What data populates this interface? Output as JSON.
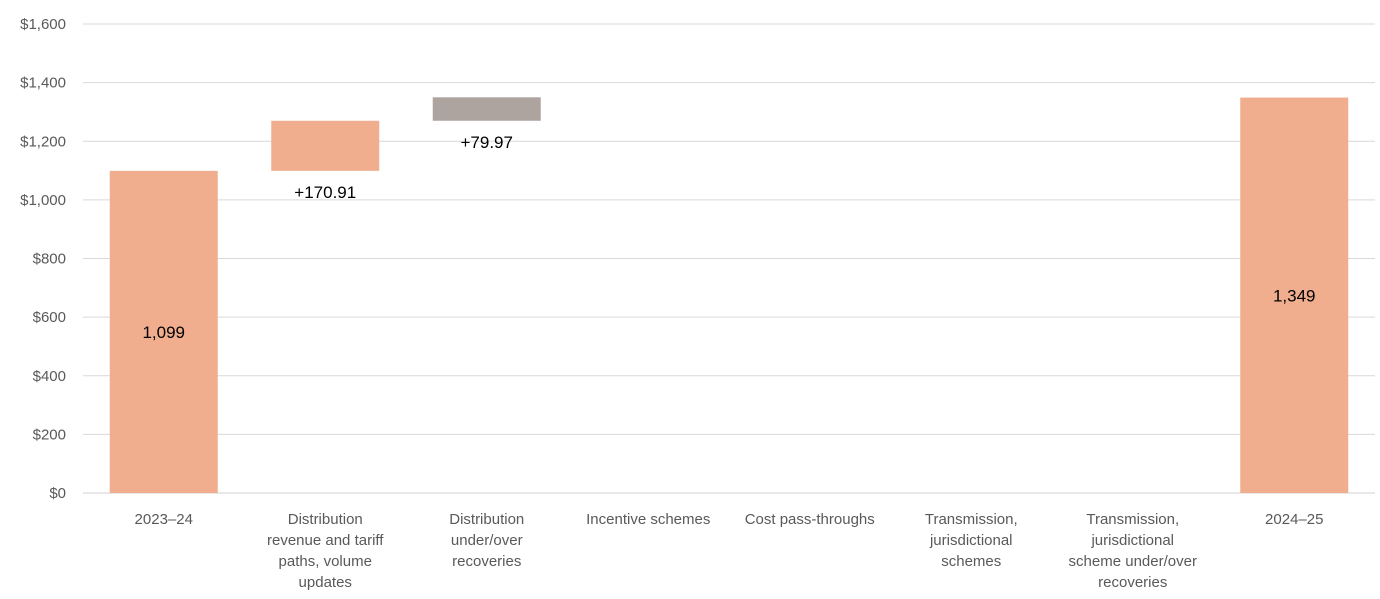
{
  "chart_data": {
    "type": "bar",
    "subtype": "waterfall",
    "title": "",
    "xlabel": "",
    "ylabel": "",
    "ylim": [
      0,
      1600
    ],
    "yticks": [
      "$0",
      "$200",
      "$400",
      "$600",
      "$800",
      "$1,000",
      "$1,200",
      "$1,400",
      "$1,600"
    ],
    "grid": true,
    "legend": "none",
    "categories": [
      [
        "2023–24"
      ],
      [
        "Distribution",
        "revenue and tariff",
        "paths, volume",
        "updates"
      ],
      [
        "Distribution",
        "under/over",
        "recoveries"
      ],
      [
        "Incentive schemes"
      ],
      [
        "Cost pass-throughs"
      ],
      [
        "Transmission,",
        "jurisdictional",
        "schemes"
      ],
      [
        "Transmission,",
        "jurisdictional",
        "scheme under/over",
        "recoveries"
      ],
      [
        "2024–25"
      ]
    ],
    "bars": [
      {
        "kind": "total",
        "base": 0,
        "value": 1099,
        "label": "1,099",
        "color": "#f0ae8f"
      },
      {
        "kind": "delta",
        "base": 1099,
        "value": 170.91,
        "label": "+170.91",
        "color": "#f0ae8f"
      },
      {
        "kind": "delta",
        "base": 1269.91,
        "value": 79.97,
        "label": "+79.97",
        "color": "#aea49f"
      },
      {
        "kind": "delta",
        "base": 1349,
        "value": 0,
        "label": "",
        "color": "#f0ae8f"
      },
      {
        "kind": "delta",
        "base": 1349,
        "value": 0,
        "label": "",
        "color": "#f0ae8f"
      },
      {
        "kind": "delta",
        "base": 1349,
        "value": 0,
        "label": "",
        "color": "#f0ae8f"
      },
      {
        "kind": "delta",
        "base": 1349,
        "value": 0,
        "label": "",
        "color": "#f0ae8f"
      },
      {
        "kind": "total",
        "base": 0,
        "value": 1349,
        "label": "1,349",
        "color": "#f0ae8f"
      }
    ],
    "gridline_color": "#d9d9d9"
  }
}
